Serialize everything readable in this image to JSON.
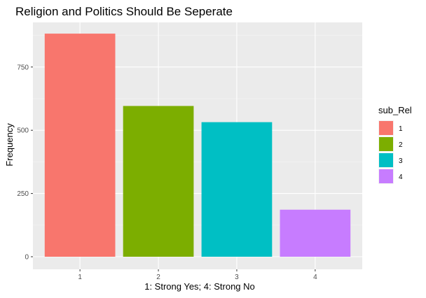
{
  "chart_data": {
    "type": "bar",
    "title": "Religion and Politics Should Be Seperate",
    "xlabel": "1: Strong Yes;   4: Strong No",
    "ylabel": "Frequency",
    "categories": [
      "1",
      "2",
      "3",
      "4"
    ],
    "values": [
      882,
      596,
      532,
      186
    ],
    "colors": [
      "#F8766D",
      "#7CAE00",
      "#00BFC4",
      "#C77CFF"
    ],
    "ylim": [
      0,
      950
    ],
    "yticks": [
      0,
      250,
      500,
      750
    ],
    "grid": true,
    "background": "#EBEBEB",
    "legend": {
      "title": "sub_Rel",
      "position": "right",
      "entries": [
        "1",
        "2",
        "3",
        "4"
      ]
    }
  }
}
